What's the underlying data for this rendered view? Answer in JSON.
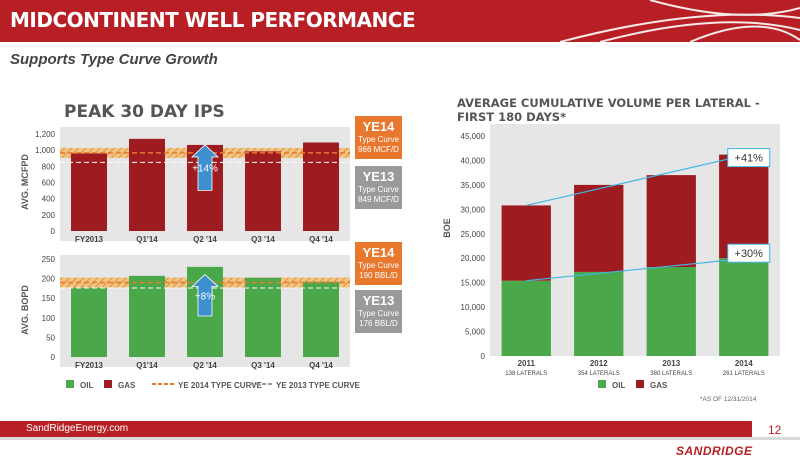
{
  "header": {
    "title": "MIDCONTINENT WELL PERFORMANCE",
    "subtitle": "Supports Type Curve Growth"
  },
  "left_title": "PEAK 30 DAY IPS",
  "right_title": "AVERAGE CUMULATIVE VOLUME PER LATERAL - FIRST 180 DAYS*",
  "callouts": {
    "gas_ye14": {
      "year": "YE14",
      "line1": "Type Curve",
      "line2": "966 MCF/D"
    },
    "gas_ye13": {
      "year": "YE13",
      "line1": "Type Curve",
      "line2": "849 MCF/D"
    },
    "oil_ye14": {
      "year": "YE14",
      "line1": "Type Curve",
      "line2": "190 BBL/D"
    },
    "oil_ye13": {
      "year": "YE13",
      "line1": "Type Curve",
      "line2": "176 BBL/D"
    }
  },
  "legend_left": {
    "oil": "OIL",
    "gas": "GAS",
    "ye2014": "YE 2014 TYPE CURVE",
    "ye2013": "YE 2013 TYPE CURVE"
  },
  "legend_right": {
    "oil": "OIL",
    "gas": "GAS"
  },
  "footnote": "*AS OF 12/31/2014",
  "footer": {
    "website": "SandRidgeEnergy.com",
    "page": "12",
    "logo": "SANDRIDGE"
  },
  "colors": {
    "oil": "#4aa84a",
    "gas": "#9e1b20",
    "header": "#b81f25",
    "ye14": "#e8782e",
    "ye13": "#9a9a9a",
    "arrow": "#3d8fce",
    "callout_line": "#41b6e6"
  },
  "chart_data": [
    {
      "type": "bar",
      "id": "gas",
      "categories": [
        "FY2013",
        "Q1'14",
        "Q2 '14",
        "Q3 '14",
        "Q4 '14"
      ],
      "values": [
        960,
        1140,
        1065,
        985,
        1095
      ],
      "ylabel": "AVG. MCFPD",
      "ylim": [
        0,
        1200
      ],
      "yticks": [
        "0",
        "200",
        "400",
        "600",
        "800",
        "1,000",
        "1,200"
      ],
      "type_curves": {
        "YE 2014": 966,
        "YE 2013": 849
      },
      "annotation": "+14%"
    },
    {
      "type": "bar",
      "id": "oil",
      "categories": [
        "FY2013",
        "Q1'14",
        "Q2 '14",
        "Q3 '14",
        "Q4 '14"
      ],
      "values": [
        177,
        207,
        230,
        202,
        192
      ],
      "ylabel": "AVG. BOPD",
      "ylim": [
        0,
        250
      ],
      "yticks": [
        "0",
        "50",
        "100",
        "150",
        "200",
        "250"
      ],
      "type_curves": {
        "YE 2014": 190,
        "YE 2013": 176
      },
      "annotation": "+8%"
    },
    {
      "type": "bar",
      "id": "cumulative",
      "stacked": true,
      "categories": [
        "2011",
        "2012",
        "2013",
        "2014"
      ],
      "sublabels": [
        "138 LATERALS",
        "354 LATERALS",
        "380 LATERALS",
        "261 LATERALS"
      ],
      "series": [
        {
          "name": "OIL",
          "values": [
            15400,
            17200,
            18200,
            20000
          ]
        },
        {
          "name": "GAS",
          "values": [
            15400,
            17800,
            18800,
            21200
          ]
        }
      ],
      "ylabel": "BOE",
      "ylim": [
        0,
        45000
      ],
      "yticks": [
        "0",
        "5,000",
        "10,000",
        "15,000",
        "20,000",
        "25,000",
        "30,000",
        "35,000",
        "40,000",
        "45,000"
      ],
      "annotations": [
        "+41%",
        "+30%"
      ]
    }
  ]
}
